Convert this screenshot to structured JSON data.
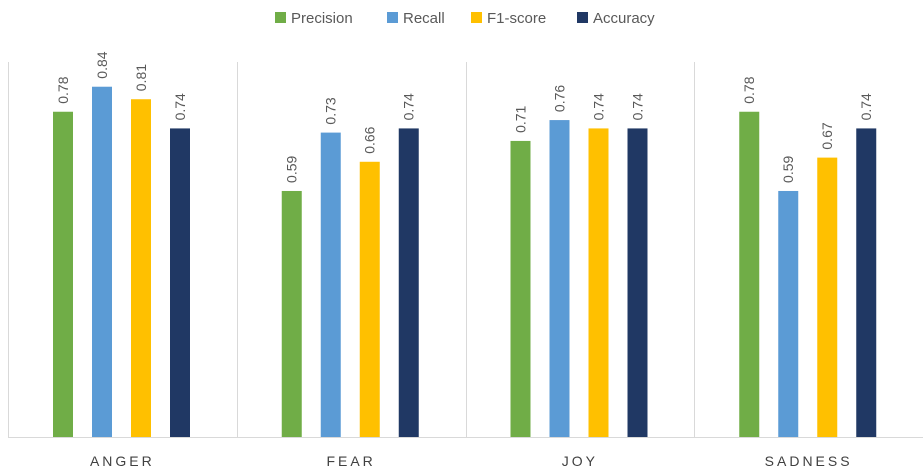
{
  "chart_data": {
    "type": "bar",
    "title": "",
    "xlabel": "",
    "ylabel": "",
    "ylim": [
      0,
      1
    ],
    "grid": false,
    "legend_position": "top",
    "categories": [
      "ANGER",
      "FEAR",
      "JOY",
      "SADNESS"
    ],
    "series": [
      {
        "name": "Precision",
        "color": "#70AD47",
        "values": [
          0.78,
          0.59,
          0.71,
          0.78
        ]
      },
      {
        "name": "Recall",
        "color": "#5B9BD5",
        "values": [
          0.84,
          0.73,
          0.76,
          0.59
        ]
      },
      {
        "name": "F1-score",
        "color": "#FFC000",
        "values": [
          0.81,
          0.66,
          0.74,
          0.67
        ]
      },
      {
        "name": "Accuracy",
        "color": "#203864",
        "values": [
          0.74,
          0.74,
          0.74,
          0.74
        ]
      }
    ]
  }
}
